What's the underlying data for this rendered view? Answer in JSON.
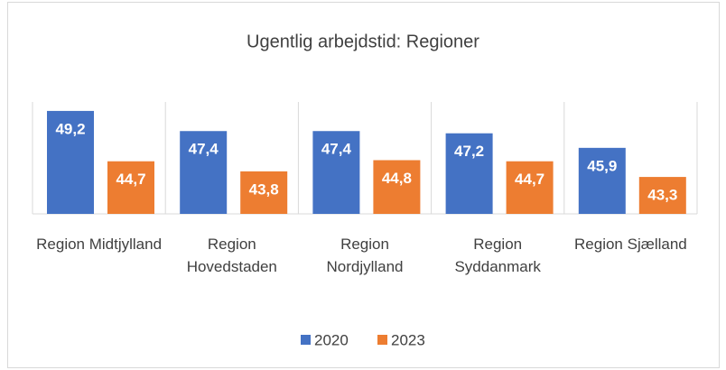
{
  "chart_data": {
    "type": "bar",
    "title": "Ugentlig arbejdstid: Regioner",
    "categories": [
      "Region Midtjylland",
      "Region Hovedstaden",
      "Region Nordjylland",
      "Region Syddanmark",
      "Region Sjælland"
    ],
    "series": [
      {
        "name": "2020",
        "color": "#4472c4",
        "values": [
          49.2,
          47.4,
          47.4,
          47.2,
          45.9
        ],
        "value_labels": [
          "49,2",
          "47,4",
          "47,4",
          "47,2",
          "45,9"
        ]
      },
      {
        "name": "2023",
        "color": "#ed7d31",
        "values": [
          44.7,
          43.8,
          44.8,
          44.7,
          43.3
        ],
        "value_labels": [
          "44,7",
          "43,8",
          "44,8",
          "44,7",
          "43,3"
        ]
      }
    ],
    "ylim": [
      40,
      50
    ],
    "legend": "bottom"
  }
}
